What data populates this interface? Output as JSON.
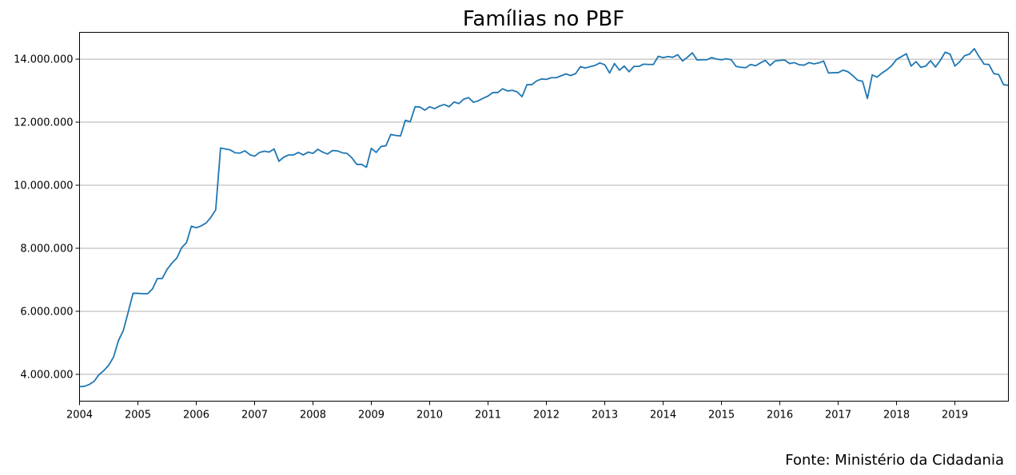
{
  "chart_data": {
    "type": "line",
    "title": "Famílias no PBF",
    "xlabel": "",
    "ylabel": "",
    "source": "Fonte: Ministério da Cidadania",
    "x_start": "2004-01",
    "x_end": "2019-12",
    "xlim": [
      "2004-01",
      "2019-12"
    ],
    "ylim": [
      3150000,
      14850000
    ],
    "grid": "horizontal",
    "line_color": "#1f77b4",
    "x_ticks": [
      "2004",
      "2005",
      "2006",
      "2007",
      "2008",
      "2009",
      "2010",
      "2011",
      "2012",
      "2013",
      "2014",
      "2015",
      "2016",
      "2017",
      "2018",
      "2019"
    ],
    "y_ticks": [
      {
        "value": 4000000,
        "label": "4.000.000"
      },
      {
        "value": 6000000,
        "label": "6.000.000"
      },
      {
        "value": 8000000,
        "label": "8.000.000"
      },
      {
        "value": 10000000,
        "label": "10.000.000"
      },
      {
        "value": 12000000,
        "label": "12.000.000"
      },
      {
        "value": 14000000,
        "label": "14.000.000"
      }
    ],
    "series": [
      {
        "values": [
          3610000,
          3620000,
          3680000,
          3780000,
          3990000,
          4120000,
          4290000,
          4550000,
          5070000,
          5390000,
          5970000,
          6570000,
          6570000,
          6560000,
          6560000,
          6710000,
          7040000,
          7040000,
          7330000,
          7530000,
          7690000,
          8020000,
          8180000,
          8700000,
          8650000,
          8710000,
          8800000,
          8980000,
          9220000,
          11180000,
          11150000,
          11120000,
          11030000,
          11020000,
          11090000,
          10970000,
          10920000,
          11040000,
          11080000,
          11050000,
          11150000,
          10760000,
          10890000,
          10960000,
          10960000,
          11040000,
          10960000,
          11050000,
          11010000,
          11140000,
          11050000,
          10990000,
          11100000,
          11090000,
          11030000,
          11010000,
          10870000,
          10660000,
          10660000,
          10570000,
          11170000,
          11040000,
          11230000,
          11250000,
          11610000,
          11580000,
          11560000,
          12060000,
          12010000,
          12490000,
          12480000,
          12380000,
          12490000,
          12430000,
          12510000,
          12560000,
          12490000,
          12640000,
          12590000,
          12730000,
          12780000,
          12630000,
          12680000,
          12760000,
          12830000,
          12940000,
          12940000,
          13060000,
          12990000,
          13010000,
          12960000,
          12810000,
          13190000,
          13190000,
          13310000,
          13370000,
          13360000,
          13410000,
          13410000,
          13470000,
          13530000,
          13480000,
          13540000,
          13760000,
          13720000,
          13760000,
          13800000,
          13880000,
          13820000,
          13560000,
          13860000,
          13650000,
          13780000,
          13600000,
          13770000,
          13770000,
          13840000,
          13830000,
          13830000,
          14090000,
          14050000,
          14080000,
          14060000,
          14140000,
          13940000,
          14060000,
          14200000,
          13970000,
          13980000,
          13980000,
          14050000,
          14000000,
          13980000,
          14010000,
          13980000,
          13770000,
          13740000,
          13730000,
          13830000,
          13790000,
          13880000,
          13960000,
          13800000,
          13940000,
          13960000,
          13970000,
          13860000,
          13890000,
          13820000,
          13810000,
          13890000,
          13850000,
          13880000,
          13940000,
          13560000,
          13570000,
          13570000,
          13650000,
          13600000,
          13480000,
          13330000,
          13300000,
          12750000,
          13500000,
          13430000,
          13560000,
          13660000,
          13790000,
          13990000,
          14080000,
          14170000,
          13780000,
          13920000,
          13740000,
          13780000,
          13950000,
          13750000,
          13960000,
          14220000,
          14160000,
          13780000,
          13920000,
          14110000,
          14160000,
          14330000,
          14070000,
          13840000,
          13830000,
          13540000,
          13510000,
          13190000,
          13170000
        ]
      }
    ]
  }
}
